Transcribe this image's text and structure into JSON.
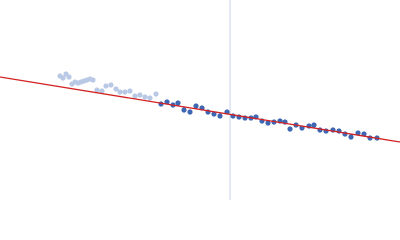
{
  "chart_data": {
    "type": "scatter",
    "xlim": [
      0,
      400
    ],
    "ylim": [
      200,
      0
    ],
    "xline": 230,
    "xline_color": "#c9d5ea",
    "series": [
      {
        "color": "#b9c9e5",
        "x": [
          60,
          63,
          66,
          69,
          72,
          75,
          78,
          81,
          84,
          87,
          90,
          93,
          97,
          102,
          106,
          111,
          116,
          120,
          125,
          130,
          135,
          140,
          145,
          150,
          156
        ],
        "values": [
          76,
          78,
          74,
          77,
          84,
          82,
          83,
          82,
          81,
          80,
          79,
          80,
          90,
          91,
          86,
          85,
          89,
          92,
          92,
          91,
          96,
          95,
          97,
          98,
          94
        ]
      },
      {
        "color": "#3d66b3",
        "x": [
          161,
          167,
          173,
          178,
          184,
          190,
          196,
          202,
          208,
          214,
          220,
          227,
          233,
          239,
          245,
          251,
          256,
          262,
          268,
          274,
          280,
          285,
          290,
          296,
          302,
          309,
          314,
          320,
          326,
          333,
          339,
          345,
          351,
          358,
          364,
          370,
          377
        ],
        "values": [
          104,
          102,
          105,
          103,
          110,
          112,
          106,
          108,
          112,
          114,
          116,
          112,
          116,
          117,
          118,
          118,
          117,
          121,
          123,
          122,
          121,
          122,
          129,
          125,
          128,
          126,
          125,
          130,
          131,
          130,
          131,
          134,
          137,
          133,
          134,
          138,
          138
        ]
      }
    ],
    "fit": {
      "color": "#d42222",
      "x": [
        0,
        400
      ],
      "values": [
        77,
        142
      ]
    }
  }
}
